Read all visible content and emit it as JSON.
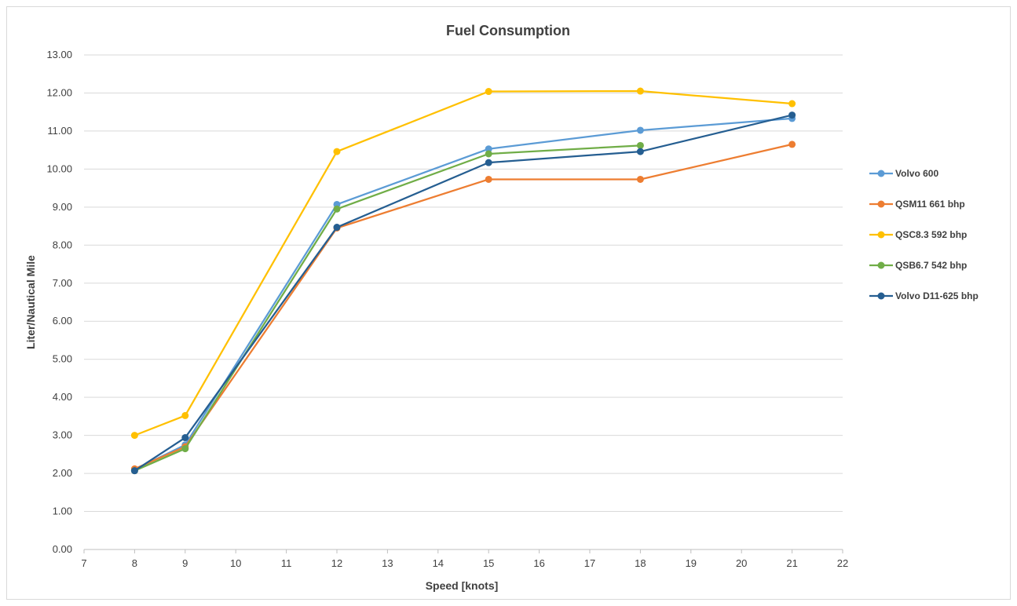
{
  "chart_data": {
    "type": "line",
    "title": "Fuel Consumption",
    "xlabel": "Speed [knots]",
    "ylabel": "Liter/Nautical Mile",
    "xlim": [
      7,
      22
    ],
    "ylim": [
      0,
      13
    ],
    "x_ticks": [
      7,
      8,
      9,
      10,
      11,
      12,
      13,
      14,
      15,
      16,
      17,
      18,
      19,
      20,
      21,
      22
    ],
    "y_ticks": [
      "0.00",
      "1.00",
      "2.00",
      "3.00",
      "4.00",
      "5.00",
      "6.00",
      "7.00",
      "8.00",
      "9.00",
      "10.00",
      "11.00",
      "12.00",
      "13.00"
    ],
    "grid": "horizontal",
    "legend_position": "right",
    "series": [
      {
        "name": "Volvo 600",
        "color": "#5b9bd5",
        "points": [
          [
            8,
            2.1
          ],
          [
            9,
            2.75
          ],
          [
            12,
            9.07
          ],
          [
            15,
            10.53
          ],
          [
            18,
            11.02
          ],
          [
            21,
            11.33
          ]
        ]
      },
      {
        "name": "QSM11 661 bhp",
        "color": "#ed7d31",
        "points": [
          [
            8,
            2.12
          ],
          [
            9,
            2.7
          ],
          [
            12,
            8.45
          ],
          [
            15,
            9.73
          ],
          [
            18,
            9.73
          ],
          [
            21,
            10.65
          ]
        ]
      },
      {
        "name": "QSC8.3 592 bhp",
        "color": "#ffc000",
        "points": [
          [
            8,
            3.0
          ],
          [
            9,
            3.52
          ],
          [
            12,
            10.46
          ],
          [
            15,
            12.04
          ],
          [
            18,
            12.05
          ],
          [
            21,
            11.72
          ]
        ]
      },
      {
        "name": "QSB6.7 542 bhp",
        "color": "#70ad47",
        "points": [
          [
            8,
            2.07
          ],
          [
            9,
            2.65
          ],
          [
            12,
            8.95
          ],
          [
            15,
            10.4
          ],
          [
            18,
            10.62
          ]
        ]
      },
      {
        "name": "Volvo D11-625 bhp",
        "color": "#255e91",
        "points": [
          [
            8,
            2.07
          ],
          [
            9,
            2.94
          ],
          [
            12,
            8.47
          ],
          [
            15,
            10.17
          ],
          [
            18,
            10.46
          ],
          [
            21,
            11.42
          ]
        ]
      }
    ]
  }
}
